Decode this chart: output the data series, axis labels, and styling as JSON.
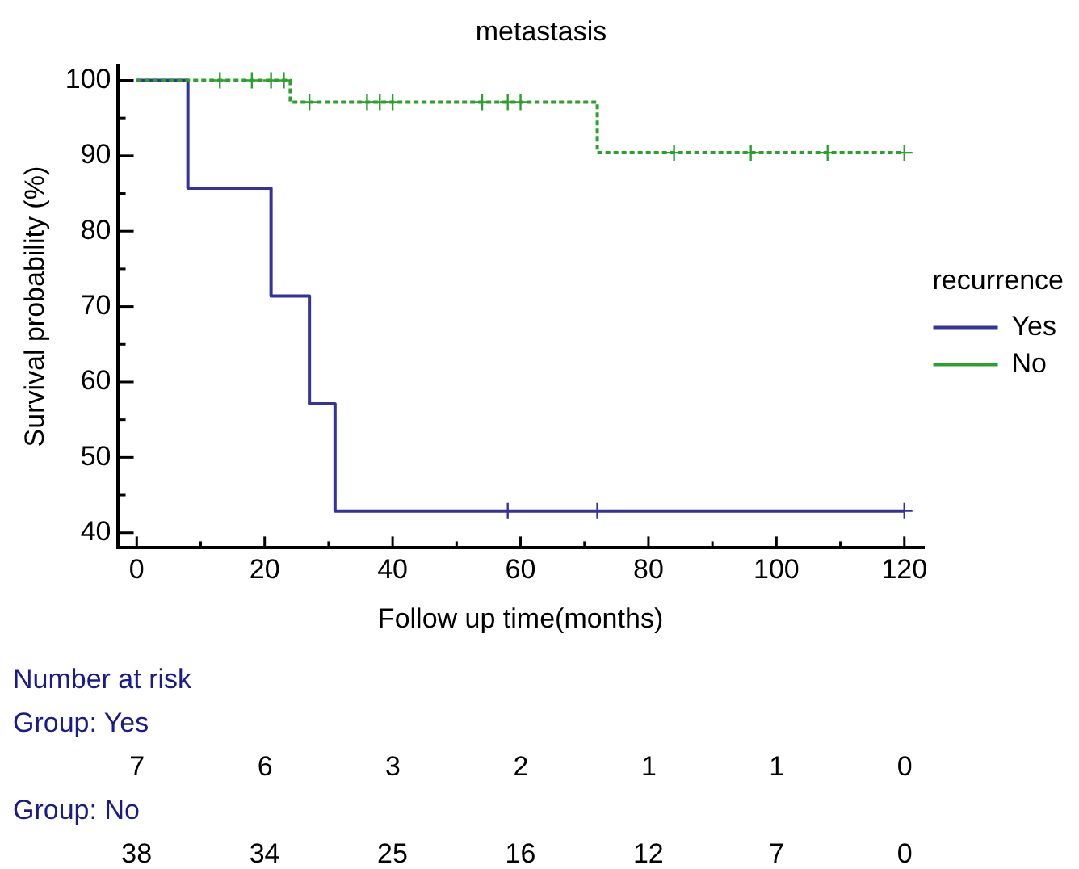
{
  "chart_data": {
    "type": "step",
    "title": "metastasis",
    "xlabel": "Follow up time(months)",
    "ylabel": "Survival probability (%)",
    "legend_title": "recurrence",
    "legend": "right",
    "xlim": [
      -3,
      123
    ],
    "xticks": [
      0,
      {
        "value": 10,
        "label": null
      },
      20,
      {
        "value": 30,
        "label": null
      },
      40,
      {
        "value": 50,
        "label": null
      },
      60,
      {
        "value": 70,
        "label": null
      },
      80,
      {
        "value": 90,
        "label": null
      },
      100,
      {
        "value": 110,
        "label": null
      },
      120
    ],
    "ylim": [
      38,
      102
    ],
    "yticks": [
      40,
      {
        "value": 45,
        "label": null
      },
      50,
      {
        "value": 55,
        "label": null
      },
      60,
      {
        "value": 65,
        "label": null
      },
      70,
      {
        "value": 75,
        "label": null
      },
      80,
      {
        "value": 85,
        "label": null
      },
      90,
      {
        "value": 95,
        "label": null
      },
      100
    ],
    "series": [
      {
        "type": "step",
        "name": "Yes",
        "color": "#333399",
        "line_style": "solid",
        "x": [
          0,
          8,
          21,
          27,
          31,
          120
        ],
        "values": [
          100,
          85.7,
          71.4,
          57.1,
          42.9,
          42.9
        ]
      },
      {
        "type": "step",
        "name": "No",
        "color": "#2ca02c",
        "line_style": "dashed",
        "x": [
          0,
          24,
          72,
          120
        ],
        "values": [
          100,
          97.1,
          90.4,
          90.4
        ]
      },
      {
        "type": "scatter",
        "color": "#333399",
        "marker": "cross",
        "x": [
          58,
          72,
          120
        ],
        "values": [
          42.9,
          42.9,
          42.9
        ]
      },
      {
        "type": "scatter",
        "color": "#2ca02c",
        "marker": "cross",
        "x": [
          13,
          18,
          21,
          23,
          27,
          36,
          38,
          40,
          54,
          58,
          60,
          84,
          96,
          108,
          120
        ],
        "values": [
          100,
          100,
          100,
          100,
          97.1,
          97.1,
          97.1,
          97.1,
          97.1,
          97.1,
          97.1,
          90.4,
          90.4,
          90.4,
          90.4
        ]
      }
    ],
    "annotations": [
      "Number at risk",
      "Group: Yes",
      "7",
      "6",
      "3",
      "2",
      "1",
      "1",
      "0",
      "Group: No",
      "38",
      "34",
      "25",
      "16",
      "12",
      "7",
      "0"
    ]
  }
}
